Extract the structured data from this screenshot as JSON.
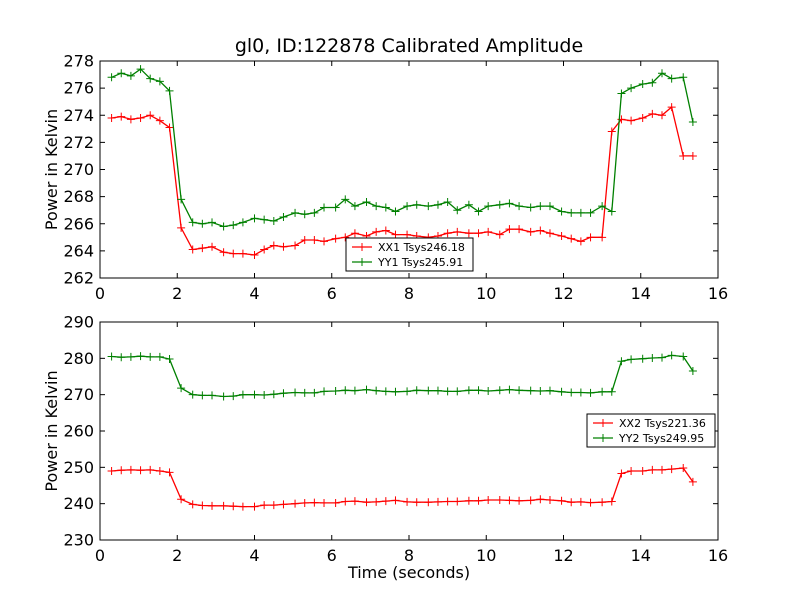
{
  "chart_data": [
    {
      "type": "line",
      "title": "gl0, ID:122878 Calibrated Amplitude",
      "xlabel": "",
      "ylabel": "Power in Kelvin",
      "xlim": [
        0,
        16
      ],
      "ylim": [
        262,
        278
      ],
      "xticks": [
        0,
        2,
        4,
        6,
        8,
        10,
        12,
        14,
        16
      ],
      "yticks": [
        262,
        264,
        266,
        268,
        270,
        272,
        274,
        276,
        278
      ],
      "grid": false,
      "legend_position": "lower-center",
      "x": [
        0.3,
        0.55,
        0.8,
        1.05,
        1.3,
        1.55,
        1.8,
        2.1,
        2.4,
        2.65,
        2.9,
        3.2,
        3.45,
        3.7,
        4.0,
        4.25,
        4.5,
        4.75,
        5.05,
        5.3,
        5.55,
        5.8,
        6.1,
        6.35,
        6.6,
        6.9,
        7.15,
        7.4,
        7.65,
        7.95,
        8.2,
        8.5,
        8.75,
        9.0,
        9.25,
        9.55,
        9.8,
        10.05,
        10.35,
        10.6,
        10.85,
        11.15,
        11.4,
        11.65,
        11.95,
        12.2,
        12.45,
        12.7,
        13.0,
        13.25,
        13.5,
        13.75,
        14.05,
        14.3,
        14.55,
        14.8,
        15.1,
        15.35
      ],
      "series": [
        {
          "name": "XX1 Tsys246.18",
          "color": "#ff0000",
          "values": [
            273.8,
            273.9,
            273.7,
            273.8,
            274.0,
            273.6,
            273.1,
            265.7,
            264.1,
            264.2,
            264.3,
            263.9,
            263.8,
            263.8,
            263.7,
            264.1,
            264.4,
            264.3,
            264.4,
            264.8,
            264.8,
            264.7,
            264.9,
            265.0,
            265.3,
            265.1,
            265.4,
            265.5,
            265.2,
            265.2,
            265.1,
            265.0,
            265.1,
            265.3,
            265.4,
            265.3,
            265.3,
            265.4,
            265.2,
            265.6,
            265.6,
            265.4,
            265.5,
            265.3,
            265.1,
            264.9,
            264.7,
            265.0,
            265.0,
            272.8,
            273.7,
            273.6,
            273.8,
            274.1,
            274.0,
            274.6,
            271.0,
            271.0
          ],
          "marker": "+"
        },
        {
          "name": "YY1 Tsys245.91",
          "color": "#008000",
          "values": [
            276.8,
            277.1,
            276.9,
            277.4,
            276.7,
            276.5,
            275.8,
            267.8,
            266.1,
            266.0,
            266.1,
            265.8,
            265.9,
            266.1,
            266.4,
            266.3,
            266.2,
            266.5,
            266.8,
            266.7,
            266.8,
            267.2,
            267.2,
            267.8,
            267.3,
            267.6,
            267.3,
            267.2,
            266.9,
            267.3,
            267.4,
            267.3,
            267.4,
            267.6,
            267.0,
            267.4,
            266.9,
            267.3,
            267.4,
            267.5,
            267.3,
            267.2,
            267.3,
            267.3,
            266.9,
            266.8,
            266.8,
            266.8,
            267.3,
            266.9,
            275.6,
            276.0,
            276.3,
            276.4,
            277.1,
            276.7,
            276.8,
            273.5
          ],
          "marker": "+"
        }
      ]
    },
    {
      "type": "line",
      "title": "",
      "xlabel": "Time (seconds)",
      "ylabel": "Power in Kelvin",
      "xlim": [
        0,
        16
      ],
      "ylim": [
        230,
        290
      ],
      "xticks": [
        0,
        2,
        4,
        6,
        8,
        10,
        12,
        14,
        16
      ],
      "yticks": [
        230,
        240,
        250,
        260,
        270,
        280,
        290
      ],
      "grid": false,
      "legend_position": "center-right",
      "x": [
        0.3,
        0.55,
        0.8,
        1.05,
        1.3,
        1.55,
        1.8,
        2.1,
        2.4,
        2.65,
        2.9,
        3.2,
        3.45,
        3.7,
        4.0,
        4.25,
        4.5,
        4.75,
        5.05,
        5.3,
        5.55,
        5.8,
        6.1,
        6.35,
        6.6,
        6.9,
        7.15,
        7.4,
        7.65,
        7.95,
        8.2,
        8.5,
        8.75,
        9.0,
        9.25,
        9.55,
        9.8,
        10.05,
        10.35,
        10.6,
        10.85,
        11.15,
        11.4,
        11.65,
        11.95,
        12.2,
        12.45,
        12.7,
        13.0,
        13.25,
        13.5,
        13.75,
        14.05,
        14.3,
        14.55,
        14.8,
        15.1,
        15.35
      ],
      "series": [
        {
          "name": "XX2 Tsys221.36",
          "color": "#ff0000",
          "values": [
            249.0,
            249.2,
            249.3,
            249.2,
            249.3,
            249.0,
            248.6,
            241.2,
            239.8,
            239.5,
            239.4,
            239.4,
            239.3,
            239.2,
            239.2,
            239.6,
            239.6,
            239.8,
            240.0,
            240.2,
            240.3,
            240.2,
            240.2,
            240.6,
            240.7,
            240.4,
            240.5,
            240.7,
            240.9,
            240.5,
            240.4,
            240.4,
            240.5,
            240.6,
            240.6,
            240.8,
            240.8,
            241.0,
            241.0,
            240.9,
            240.8,
            240.9,
            241.2,
            241.0,
            240.8,
            240.4,
            240.5,
            240.3,
            240.4,
            240.6,
            248.3,
            249.0,
            249.0,
            249.3,
            249.3,
            249.5,
            249.8,
            246.0
          ],
          "marker": "+"
        },
        {
          "name": "YY2 Tsys249.95",
          "color": "#008000",
          "values": [
            280.5,
            280.3,
            280.4,
            280.6,
            280.4,
            280.4,
            279.8,
            271.8,
            270.0,
            269.8,
            269.8,
            269.5,
            269.6,
            270.0,
            270.0,
            269.9,
            270.1,
            270.4,
            270.6,
            270.5,
            270.5,
            270.9,
            271.0,
            271.2,
            271.1,
            271.4,
            271.1,
            270.9,
            270.8,
            270.9,
            271.2,
            271.1,
            271.1,
            270.9,
            270.9,
            271.2,
            271.2,
            271.0,
            271.2,
            271.4,
            271.2,
            271.1,
            271.0,
            271.1,
            270.8,
            270.6,
            270.6,
            270.5,
            270.8,
            270.8,
            279.2,
            279.7,
            279.9,
            280.1,
            280.2,
            280.8,
            280.5,
            276.5
          ],
          "marker": "+"
        }
      ]
    }
  ]
}
